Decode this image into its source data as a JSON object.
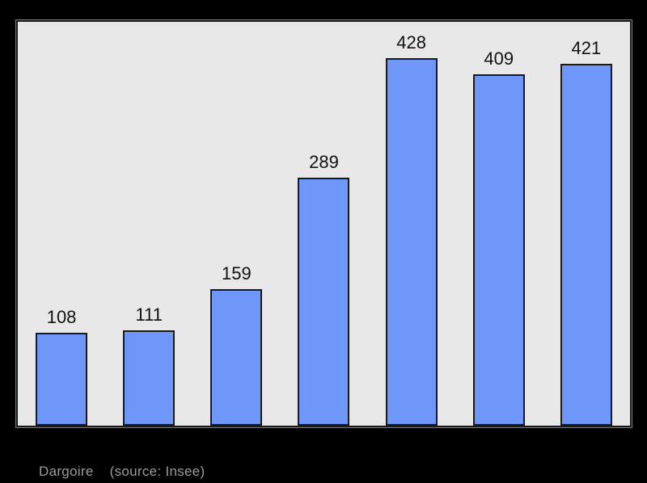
{
  "colors": {
    "canvas_bg": "#000000",
    "plot_bg": "#e8e8e8",
    "plot_border": "#1a1a1a",
    "bar_fill": "#6f97f9",
    "bar_border": "#1a1a1a",
    "label_text": "#111111",
    "caption_text": "#9c9c9c"
  },
  "caption": {
    "name": "Dargoire",
    "source": "(source: Insee)"
  },
  "chart_data": {
    "type": "bar",
    "values": [
      108,
      111,
      159,
      289,
      428,
      409,
      421
    ],
    "data_labels": [
      "108",
      "111",
      "159",
      "289",
      "428",
      "409",
      "421"
    ],
    "categories": [
      "",
      "",
      "",
      "",
      "",
      "",
      ""
    ],
    "title": "",
    "xlabel": "",
    "ylabel": "",
    "ylim": [
      0,
      470
    ],
    "grid": false,
    "legend": null,
    "caption": "Dargoire    (source: Insee)",
    "notes": "population bar chart, no axis tick labels visible; value labels shown above each bar"
  }
}
